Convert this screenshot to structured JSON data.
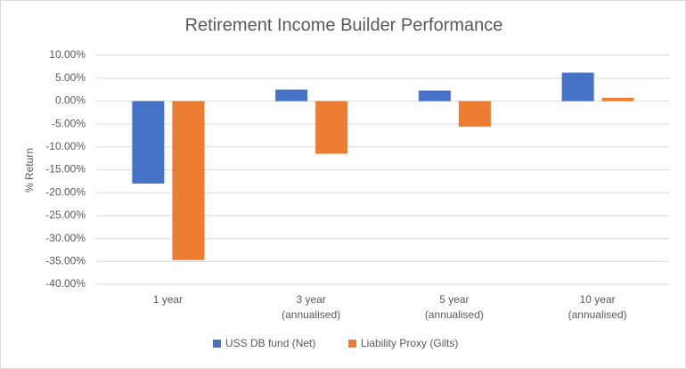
{
  "chart_data": {
    "type": "bar",
    "title": "Retirement Income Builder Performance",
    "y_label": "% Return",
    "categories": [
      "1 year",
      "3 year\n(annualised)",
      "5 year\n(annualised)",
      "10 year\n(annualised)"
    ],
    "series": [
      {
        "name": "USS DB fund (Net)",
        "color": "#4472c4",
        "values": [
          -18,
          2.5,
          2.3,
          6.2
        ]
      },
      {
        "name": "Liability Proxy (Gilts)",
        "color": "#ed7d31",
        "values": [
          -34.7,
          -11.5,
          -5.6,
          0.7
        ]
      }
    ],
    "ylim": [
      -40,
      10
    ],
    "yticks": [
      {
        "value": -40,
        "label": "-40.00%"
      },
      {
        "value": -35,
        "label": "-35.00%"
      },
      {
        "value": -30,
        "label": "-30.00%"
      },
      {
        "value": -25,
        "label": "-25.00%"
      },
      {
        "value": -20,
        "label": "-20.00%"
      },
      {
        "value": -15,
        "label": "-15.00%"
      },
      {
        "value": -10,
        "label": "-10.00%"
      },
      {
        "value": -5,
        "label": "-5.00%"
      },
      {
        "value": 0,
        "label": "0.00%"
      },
      {
        "value": 5,
        "label": "5.00%"
      },
      {
        "value": 10,
        "label": "10.00%"
      }
    ],
    "grid": true,
    "legend": "bottom"
  }
}
